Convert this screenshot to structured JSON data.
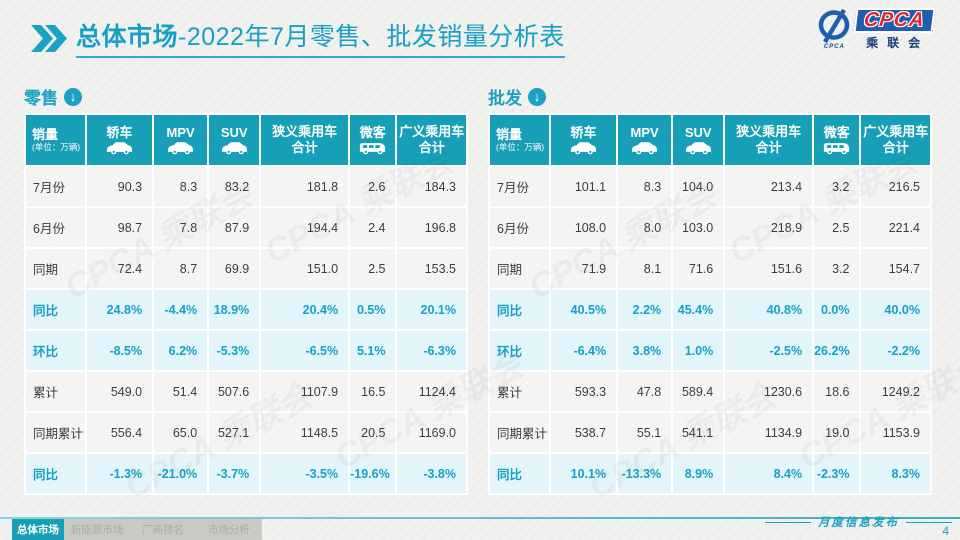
{
  "title": {
    "highlight": "总体市场",
    "rest": "-2022年7月零售、批发销量分析表"
  },
  "logo": {
    "acronym": "CPCA",
    "name_cn": "乘联会",
    "swirl_caption": "CPCA"
  },
  "watermark": "CPCA 乘联会",
  "columns": [
    {
      "label": "销量",
      "sub": "(单位：万辆)"
    },
    {
      "label": "轿车",
      "icon": "car"
    },
    {
      "label": "MPV",
      "icon": "car"
    },
    {
      "label": "SUV",
      "icon": "car"
    },
    {
      "label": "狭义乘用车",
      "line2": "合计"
    },
    {
      "label": "微客",
      "icon": "van"
    },
    {
      "label": "广义乘用车",
      "line2": "合计"
    }
  ],
  "tables": [
    {
      "id": "retail",
      "label": "零售",
      "arrow_icon": "circle-down-arrow",
      "rows": [
        {
          "label": "7月份",
          "highlight": false,
          "values": [
            "90.3",
            "8.3",
            "83.2",
            "181.8",
            "2.6",
            "184.3"
          ]
        },
        {
          "label": "6月份",
          "highlight": false,
          "values": [
            "98.7",
            "7.8",
            "87.9",
            "194.4",
            "2.4",
            "196.8"
          ]
        },
        {
          "label": "同期",
          "highlight": false,
          "values": [
            "72.4",
            "8.7",
            "69.9",
            "151.0",
            "2.5",
            "153.5"
          ]
        },
        {
          "label": "同比",
          "highlight": true,
          "values": [
            "24.8%",
            "-4.4%",
            "18.9%",
            "20.4%",
            "0.5%",
            "20.1%"
          ]
        },
        {
          "label": "环比",
          "highlight": true,
          "values": [
            "-8.5%",
            "6.2%",
            "-5.3%",
            "-6.5%",
            "5.1%",
            "-6.3%"
          ]
        },
        {
          "label": "累计",
          "highlight": false,
          "values": [
            "549.0",
            "51.4",
            "507.6",
            "1107.9",
            "16.5",
            "1124.4"
          ]
        },
        {
          "label": "同期累计",
          "highlight": false,
          "values": [
            "556.4",
            "65.0",
            "527.1",
            "1148.5",
            "20.5",
            "1169.0"
          ]
        },
        {
          "label": "同比",
          "highlight": true,
          "values": [
            "-1.3%",
            "-21.0%",
            "-3.7%",
            "-3.5%",
            "-19.6%",
            "-3.8%"
          ]
        }
      ]
    },
    {
      "id": "wholesale",
      "label": "批发",
      "arrow_icon": "circle-down-arrow",
      "rows": [
        {
          "label": "7月份",
          "highlight": false,
          "values": [
            "101.1",
            "8.3",
            "104.0",
            "213.4",
            "3.2",
            "216.5"
          ]
        },
        {
          "label": "6月份",
          "highlight": false,
          "values": [
            "108.0",
            "8.0",
            "103.0",
            "218.9",
            "2.5",
            "221.4"
          ]
        },
        {
          "label": "同期",
          "highlight": false,
          "values": [
            "71.9",
            "8.1",
            "71.6",
            "151.6",
            "3.2",
            "154.7"
          ]
        },
        {
          "label": "同比",
          "highlight": true,
          "values": [
            "40.5%",
            "2.2%",
            "45.4%",
            "40.8%",
            "0.0%",
            "40.0%"
          ]
        },
        {
          "label": "环比",
          "highlight": true,
          "values": [
            "-6.4%",
            "3.8%",
            "1.0%",
            "-2.5%",
            "26.2%",
            "-2.2%"
          ]
        },
        {
          "label": "累计",
          "highlight": false,
          "values": [
            "593.3",
            "47.8",
            "589.4",
            "1230.6",
            "18.6",
            "1249.2"
          ]
        },
        {
          "label": "同期累计",
          "highlight": false,
          "values": [
            "538.7",
            "55.1",
            "541.1",
            "1134.9",
            "19.0",
            "1153.9"
          ]
        },
        {
          "label": "同比",
          "highlight": true,
          "values": [
            "10.1%",
            "-13.3%",
            "8.9%",
            "8.4%",
            "-2.3%",
            "8.3%"
          ]
        }
      ]
    }
  ],
  "footer": {
    "tabs": [
      {
        "label": "总体市场",
        "active": true
      },
      {
        "label": "新能源市场",
        "active": false
      },
      {
        "label": "厂商排名",
        "active": false
      },
      {
        "label": "市场分析",
        "active": false
      }
    ],
    "release_note": "月度信息发布",
    "page": "4"
  },
  "colors": {
    "accent_teal": "#189fb8",
    "title_teal": "#179fc4",
    "highlight_row_bg": "#e3f4fa",
    "highlight_text": "#14a2c6",
    "body_text": "#3d3d3d",
    "logo_blue": "#1d5fae",
    "logo_red": "#e0262a",
    "inactive_tab_bg": "#c9c9c6"
  }
}
